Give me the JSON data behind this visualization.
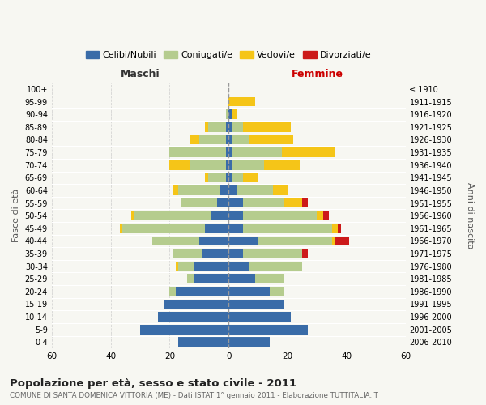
{
  "age_groups": [
    "0-4",
    "5-9",
    "10-14",
    "15-19",
    "20-24",
    "25-29",
    "30-34",
    "35-39",
    "40-44",
    "45-49",
    "50-54",
    "55-59",
    "60-64",
    "65-69",
    "70-74",
    "75-79",
    "80-84",
    "85-89",
    "90-94",
    "95-99",
    "100+"
  ],
  "birth_years": [
    "2006-2010",
    "2001-2005",
    "1996-2000",
    "1991-1995",
    "1986-1990",
    "1981-1985",
    "1976-1980",
    "1971-1975",
    "1966-1970",
    "1961-1965",
    "1956-1960",
    "1951-1955",
    "1946-1950",
    "1941-1945",
    "1936-1940",
    "1931-1935",
    "1926-1930",
    "1921-1925",
    "1916-1920",
    "1911-1915",
    "≤ 1910"
  ],
  "maschi": {
    "celibi": [
      17,
      30,
      24,
      22,
      18,
      12,
      12,
      9,
      10,
      8,
      6,
      4,
      3,
      1,
      1,
      1,
      1,
      1,
      0,
      0,
      0
    ],
    "coniugati": [
      0,
      0,
      0,
      0,
      2,
      2,
      5,
      10,
      16,
      28,
      26,
      12,
      14,
      6,
      12,
      19,
      9,
      6,
      1,
      0,
      0
    ],
    "vedovi": [
      0,
      0,
      0,
      0,
      0,
      0,
      1,
      0,
      0,
      1,
      1,
      0,
      2,
      1,
      7,
      0,
      3,
      1,
      0,
      0,
      0
    ],
    "divorziati": [
      0,
      0,
      0,
      0,
      0,
      0,
      0,
      0,
      0,
      0,
      0,
      0,
      0,
      0,
      0,
      0,
      0,
      0,
      0,
      0,
      0
    ]
  },
  "femmine": {
    "nubili": [
      14,
      27,
      21,
      19,
      14,
      9,
      7,
      5,
      10,
      5,
      5,
      5,
      3,
      1,
      1,
      1,
      1,
      1,
      1,
      0,
      0
    ],
    "coniugate": [
      0,
      0,
      0,
      0,
      5,
      10,
      18,
      20,
      25,
      30,
      25,
      14,
      12,
      4,
      11,
      17,
      6,
      4,
      0,
      0,
      0
    ],
    "vedove": [
      0,
      0,
      0,
      0,
      0,
      0,
      0,
      0,
      1,
      2,
      2,
      6,
      5,
      5,
      12,
      18,
      15,
      16,
      2,
      9,
      0
    ],
    "divorziate": [
      0,
      0,
      0,
      0,
      0,
      0,
      0,
      2,
      5,
      1,
      2,
      2,
      0,
      0,
      0,
      0,
      0,
      0,
      0,
      0,
      0
    ]
  },
  "colors": {
    "celibi_nubili": "#3a6ca8",
    "coniugati": "#b5cc8e",
    "vedovi": "#f5c518",
    "divorziati": "#cc1a1a"
  },
  "xlim": 60,
  "title": "Popolazione per età, sesso e stato civile - 2011",
  "subtitle": "COMUNE DI SANTA DOMENICA VITTORIA (ME) - Dati ISTAT 1° gennaio 2011 - Elaborazione TUTTITALIA.IT",
  "ylabel": "Fasce di età",
  "ylabel_right": "Anni di nascita",
  "xlabel_left": "Maschi",
  "xlabel_right": "Femmine",
  "bg_color": "#f7f7f2",
  "grid_color": "#cccccc"
}
